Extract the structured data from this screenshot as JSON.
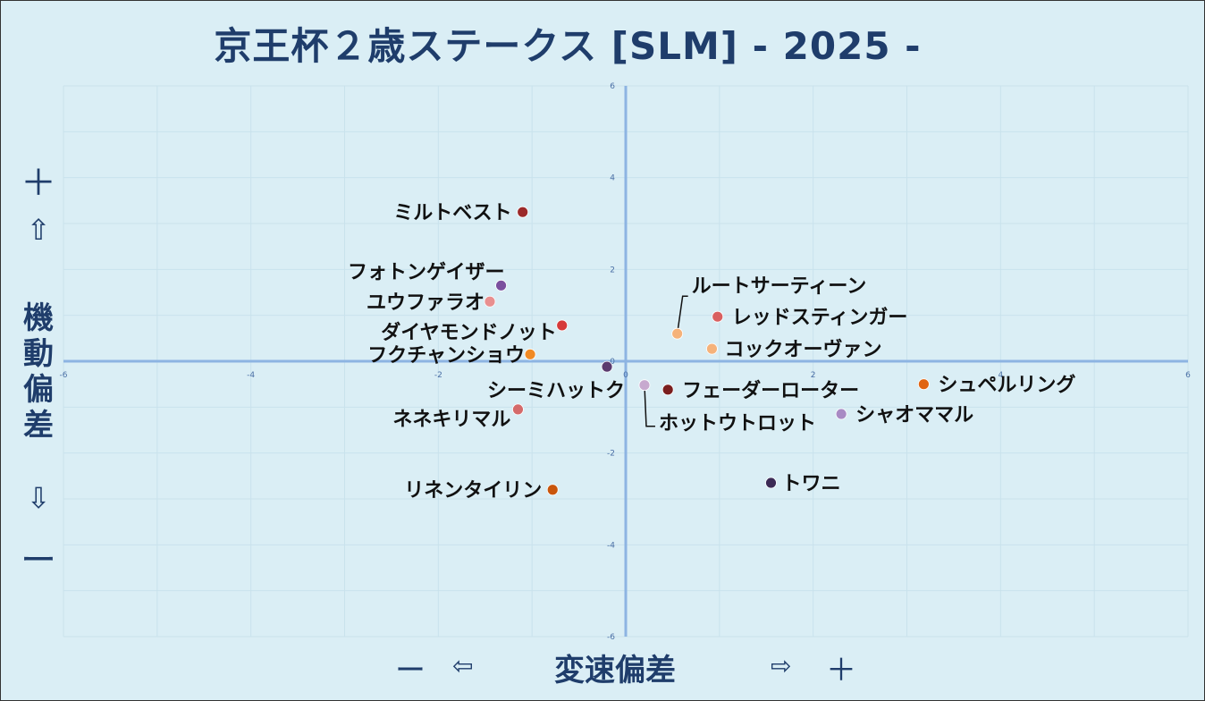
{
  "title": "京王杯２歳ステークス [SLM]  - 2025 -",
  "y_axis": {
    "plus": "＋",
    "up_arrow": "⇧",
    "label_chars": [
      "機",
      "動",
      "偏",
      "差"
    ],
    "down_arrow": "⇩",
    "minus": "ー"
  },
  "x_axis": {
    "minus": "ー",
    "left_arrow": "⇦",
    "label": "変速偏差",
    "right_arrow": "⇨",
    "plus": "＋"
  },
  "chart_data": {
    "type": "scatter",
    "xlim": [
      -6,
      6
    ],
    "ylim": [
      -6,
      6
    ],
    "x_ticks": [
      -6,
      -4,
      -2,
      0,
      2,
      4,
      6
    ],
    "y_ticks": [
      6,
      4,
      2,
      0,
      -2,
      -4,
      -6
    ],
    "grid": true,
    "points": [
      {
        "name": "ミルトベスト",
        "x": -1.1,
        "y": 3.25,
        "color": "#9b2a2a"
      },
      {
        "name": "フォトンゲイザー",
        "x": -1.33,
        "y": 1.65,
        "color": "#7b4f9e"
      },
      {
        "name": "ユウファラオ",
        "x": -1.45,
        "y": 1.3,
        "color": "#e88f8f"
      },
      {
        "name": "ダイヤモンドノット",
        "x": -0.68,
        "y": 0.78,
        "color": "#d63a3a"
      },
      {
        "name": "フクチャンショウ",
        "x": -1.02,
        "y": 0.15,
        "color": "#f08a24"
      },
      {
        "name": "シーミハットク",
        "x": -0.2,
        "y": -0.12,
        "color": "#5b3a6e"
      },
      {
        "name": "ネネキリマル",
        "x": -1.15,
        "y": -1.05,
        "color": "#d46a6a"
      },
      {
        "name": "リネンタイリン",
        "x": -0.78,
        "y": -2.8,
        "color": "#c9560c"
      },
      {
        "name": "ルートサーティーン",
        "x": 0.55,
        "y": 0.6,
        "color": "#f5b27a"
      },
      {
        "name": "レッドスティンガー",
        "x": 0.98,
        "y": 0.97,
        "color": "#d96060"
      },
      {
        "name": "コックオーヴァン",
        "x": 0.92,
        "y": 0.27,
        "color": "#f5b27a"
      },
      {
        "name": "フェーダーローター",
        "x": 0.45,
        "y": -0.62,
        "color": "#7a1e1e"
      },
      {
        "name": "ホットウトロット",
        "x": 0.2,
        "y": -0.52,
        "color": "#c7a9cf"
      },
      {
        "name": "シュペルリング",
        "x": 3.18,
        "y": -0.5,
        "color": "#e06412"
      },
      {
        "name": "シャオママル",
        "x": 2.3,
        "y": -1.15,
        "color": "#a88ac4"
      },
      {
        "name": "トワニ",
        "x": 1.55,
        "y": -2.65,
        "color": "#3b2a55"
      }
    ]
  }
}
